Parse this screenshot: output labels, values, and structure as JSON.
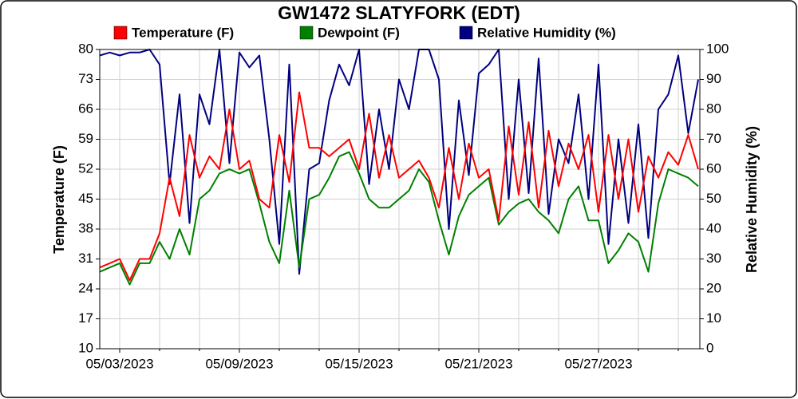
{
  "chart_data": {
    "type": "line",
    "title": "GW1472 SLATYFORK (EDT)",
    "y_label": "Temperature (F)",
    "y2_label": "Relative Humidity (%)",
    "x": [
      2,
      2.5,
      3,
      3.5,
      4,
      4.5,
      5,
      5.5,
      6,
      6.5,
      7,
      7.5,
      8,
      8.5,
      9,
      9.5,
      10,
      10.5,
      11,
      11.5,
      12,
      12.5,
      13,
      13.5,
      14,
      14.5,
      15,
      15.5,
      16,
      16.5,
      17,
      17.5,
      18,
      18.5,
      19,
      19.5,
      20,
      20.5,
      21,
      21.5,
      22,
      22.5,
      23,
      23.5,
      24,
      24.5,
      25,
      25.5,
      26,
      26.5,
      27,
      27.5,
      28,
      28.5,
      29,
      29.5,
      30,
      30.5,
      31,
      31.5,
      32
    ],
    "series": [
      {
        "name": "Temperature (F)",
        "color": "#ff0000",
        "values": [
          29,
          30,
          31,
          26,
          31,
          31,
          37,
          50,
          41,
          60,
          50,
          55,
          52,
          66,
          52,
          54,
          45,
          43,
          60,
          49,
          70,
          57,
          57,
          55,
          57,
          59,
          52,
          65,
          50,
          60,
          50,
          52,
          54,
          50,
          43,
          57,
          45,
          58,
          50,
          52,
          40,
          62,
          46,
          63,
          43,
          61,
          48,
          58,
          52,
          60,
          42,
          60,
          45,
          59,
          42,
          55,
          50,
          56,
          53,
          60,
          52
        ]
      },
      {
        "name": "Dewpoint (F)",
        "color": "#008000",
        "values": [
          28,
          29,
          30,
          25,
          30,
          30,
          35,
          31,
          38,
          32,
          45,
          47,
          51,
          52,
          51,
          52,
          44,
          35,
          30,
          47,
          29,
          45,
          46,
          50,
          55,
          56,
          51,
          45,
          43,
          43,
          45,
          47,
          52,
          49,
          40,
          32,
          41,
          46,
          48,
          50,
          39,
          42,
          44,
          45,
          42,
          40,
          37,
          45,
          48,
          40,
          40,
          30,
          33,
          37,
          35,
          28,
          44,
          52,
          51,
          50,
          48
        ]
      },
      {
        "name": "Relative Humidity (%)",
        "color": "#000080",
        "axis": "y2",
        "values": [
          98,
          99,
          98,
          99,
          99,
          100,
          95,
          55,
          85,
          42,
          85,
          75,
          100,
          62,
          99,
          94,
          98,
          70,
          35,
          95,
          25,
          60,
          62,
          83,
          95,
          88,
          100,
          55,
          80,
          60,
          90,
          80,
          100,
          100,
          90,
          40,
          83,
          58,
          92,
          95,
          100,
          50,
          90,
          52,
          97,
          45,
          70,
          62,
          85,
          50,
          95,
          35,
          70,
          42,
          75,
          37,
          80,
          85,
          98,
          72,
          90
        ]
      }
    ],
    "xlim": [
      2,
      32.08
    ],
    "xticks": [
      {
        "value": 3,
        "label": "05/03/2023"
      },
      {
        "value": 9,
        "label": "05/09/2023"
      },
      {
        "value": 15,
        "label": "05/15/2023"
      },
      {
        "value": 21,
        "label": "05/21/2023"
      },
      {
        "value": 27,
        "label": "05/27/2023"
      }
    ],
    "x_minor_ticks": [
      5,
      7,
      11,
      13,
      17,
      19,
      23,
      25,
      29,
      31
    ],
    "ylim": [
      10,
      80
    ],
    "yticks": [
      10,
      17,
      24,
      31,
      38,
      45,
      52,
      59,
      66,
      73,
      80
    ],
    "y2lim": [
      0,
      100
    ],
    "y2ticks": [
      0,
      10,
      20,
      30,
      40,
      50,
      60,
      70,
      80,
      90,
      100
    ],
    "grid": true,
    "legend": "top"
  }
}
